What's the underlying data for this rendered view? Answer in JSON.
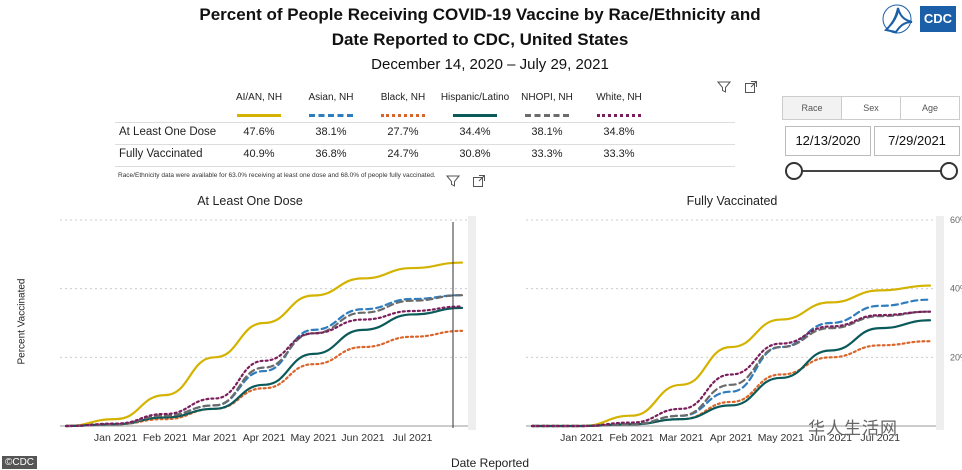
{
  "header": {
    "title": "Percent of People Receiving COVID-19 Vaccine by Race/Ethnicity and\nDate Reported to CDC, United States",
    "subtitle": "December 14, 2020 – July 29, 2021",
    "logo_text": "CDC"
  },
  "table": {
    "groups": [
      {
        "name": "AI/AN, NH",
        "color": "#d4b300",
        "dash": "solid"
      },
      {
        "name": "Asian, NH",
        "color": "#2e7dbf",
        "dash": "dash"
      },
      {
        "name": "Black, NH",
        "color": "#d9652b",
        "dash": "dot"
      },
      {
        "name": "Hispanic/Latino",
        "color": "#0b5a5a",
        "dash": "solid"
      },
      {
        "name": "NHOPI, NH",
        "color": "#6b6b6b",
        "dash": "dash"
      },
      {
        "name": "White, NH",
        "color": "#7a1f5c",
        "dash": "dot"
      }
    ],
    "rows": [
      {
        "label": "At Least One Dose",
        "values": [
          "47.6%",
          "38.1%",
          "27.7%",
          "34.4%",
          "38.1%",
          "34.8%"
        ]
      },
      {
        "label": "Fully Vaccinated",
        "values": [
          "40.9%",
          "36.8%",
          "24.7%",
          "30.8%",
          "33.3%",
          "33.3%"
        ]
      }
    ],
    "note": "Race/Ethnicity data were available for 63.0% receiving at least one dose and 68.0% of people fully vaccinated."
  },
  "slicer": {
    "tabs": [
      "Race",
      "Sex",
      "Age"
    ],
    "active_tab": "Race",
    "start_date": "12/13/2020",
    "end_date": "7/29/2021",
    "range_position": [
      0,
      1
    ]
  },
  "axes": {
    "ylabel": "Percent Vaccinated",
    "xlabel": "Date Reported",
    "right_ticks": [
      "60%",
      "40%",
      "20%"
    ]
  },
  "credit": "©CDC",
  "watermark": "华人生活网",
  "chart_data": [
    {
      "type": "line",
      "title": "At Least One Dose",
      "xlabel": "Date Reported",
      "ylabel": "Percent Vaccinated",
      "x": [
        "Dec 14",
        "Jan 2021",
        "Feb 2021",
        "Mar 2021",
        "Apr 2021",
        "May 2021",
        "Jun 2021",
        "Jul 2021",
        "Jul 29"
      ],
      "x_ticks": [
        "Jan 2021",
        "Feb 2021",
        "Mar 2021",
        "Apr 2021",
        "May 2021",
        "Jun 2021",
        "Jul 2021"
      ],
      "ylim": [
        0,
        60
      ],
      "grid": true,
      "series": [
        {
          "name": "AI/AN, NH",
          "color": "#d4b300",
          "dash": "solid",
          "values": [
            0,
            2,
            9,
            20,
            30,
            38,
            43,
            46,
            47.6
          ]
        },
        {
          "name": "Asian, NH",
          "color": "#2e7dbf",
          "dash": "dash",
          "values": [
            0,
            0.5,
            3,
            6,
            16,
            28,
            34,
            37,
            38.1
          ]
        },
        {
          "name": "Black, NH",
          "color": "#d9652b",
          "dash": "dot",
          "values": [
            0,
            0.5,
            2,
            5,
            11,
            18,
            23,
            26,
            27.7
          ]
        },
        {
          "name": "Hispanic/Latino",
          "color": "#0b5a5a",
          "dash": "solid",
          "values": [
            0,
            0.5,
            2.5,
            5,
            12,
            21,
            28,
            32.5,
            34.4
          ]
        },
        {
          "name": "NHOPI, NH",
          "color": "#6b6b6b",
          "dash": "dash",
          "values": [
            0,
            0.5,
            3,
            6,
            17,
            27,
            33,
            36.5,
            38.1
          ]
        },
        {
          "name": "White, NH",
          "color": "#7a1f5c",
          "dash": "dot",
          "values": [
            0,
            0.7,
            3.5,
            8,
            19,
            27,
            31,
            33.5,
            34.8
          ]
        }
      ]
    },
    {
      "type": "line",
      "title": "Fully Vaccinated",
      "xlabel": "Date Reported",
      "ylabel": "Percent Vaccinated",
      "x": [
        "Dec 14",
        "Jan 2021",
        "Feb 2021",
        "Mar 2021",
        "Apr 2021",
        "May 2021",
        "Jun 2021",
        "Jul 2021",
        "Jul 29"
      ],
      "x_ticks": [
        "Jan 2021",
        "Feb 2021",
        "Mar 2021",
        "Apr 2021",
        "May 2021",
        "Jun 2021",
        "Jul 2021"
      ],
      "ylim": [
        0,
        60
      ],
      "grid": true,
      "series": [
        {
          "name": "AI/AN, NH",
          "color": "#d4b300",
          "dash": "solid",
          "values": [
            0,
            0,
            3,
            12,
            23,
            31,
            36,
            39.5,
            40.9
          ]
        },
        {
          "name": "Asian, NH",
          "color": "#2e7dbf",
          "dash": "dash",
          "values": [
            0,
            0,
            0.5,
            3,
            10,
            23,
            30,
            35,
            36.8
          ]
        },
        {
          "name": "Black, NH",
          "color": "#d9652b",
          "dash": "dot",
          "values": [
            0,
            0,
            0.5,
            2,
            7,
            15,
            20,
            23.5,
            24.7
          ]
        },
        {
          "name": "Hispanic/Latino",
          "color": "#0b5a5a",
          "dash": "solid",
          "values": [
            0,
            0,
            0.5,
            2,
            6,
            14,
            22,
            28.5,
            30.8
          ]
        },
        {
          "name": "NHOPI, NH",
          "color": "#6b6b6b",
          "dash": "dash",
          "values": [
            0,
            0,
            0.5,
            3,
            12,
            23,
            28.5,
            32,
            33.3
          ]
        },
        {
          "name": "White, NH",
          "color": "#7a1f5c",
          "dash": "dot",
          "values": [
            0,
            0,
            1,
            5,
            15,
            24,
            29,
            32.3,
            33.3
          ]
        }
      ]
    }
  ]
}
